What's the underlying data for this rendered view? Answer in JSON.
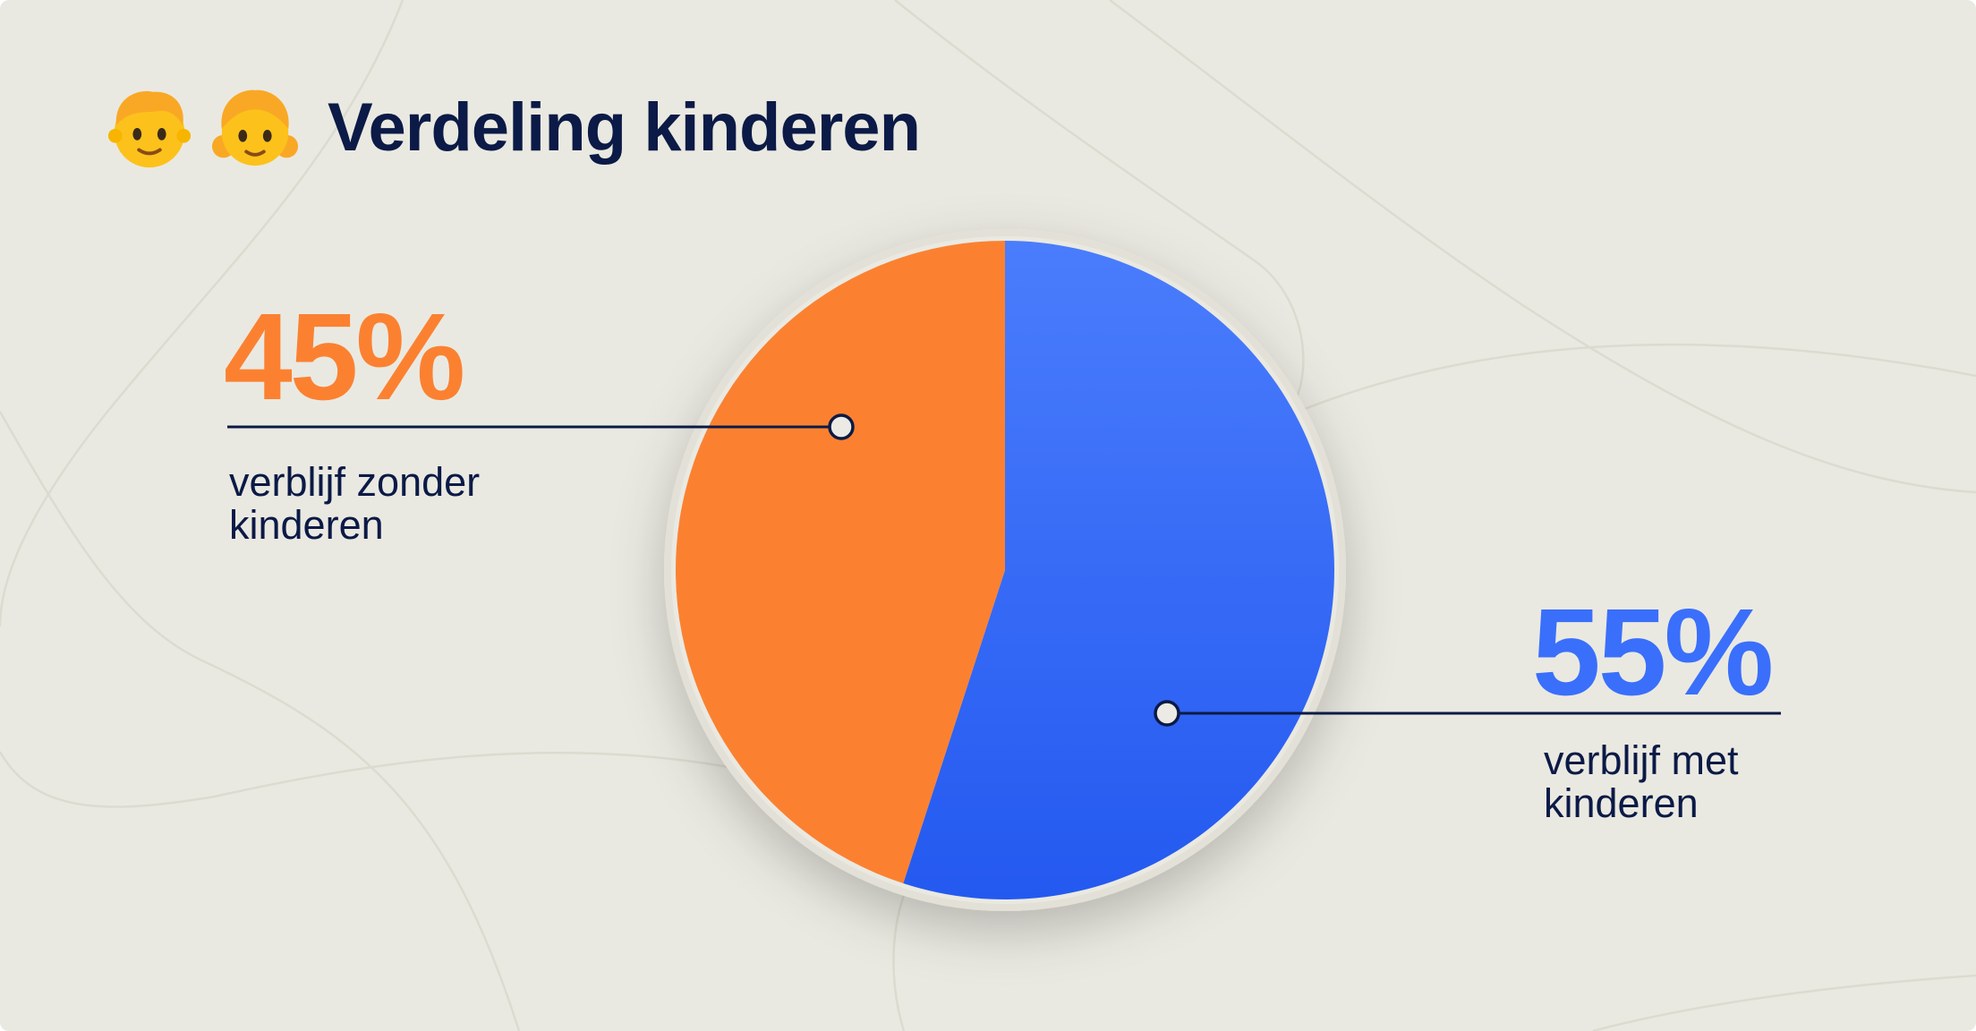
{
  "header": {
    "emojis": [
      "boy-face-icon",
      "girl-face-icon"
    ],
    "title": "Verdeling kinderen"
  },
  "colors": {
    "background": "#eae9e1",
    "text": "#0b1a46",
    "orange": "#fb8131",
    "blue": "#3a6ffb"
  },
  "chart_data": {
    "type": "pie",
    "unit": "%",
    "slices": [
      {
        "label": "verblijf met kinderen",
        "value": 55,
        "display": "55%",
        "color": "#3a6ffb",
        "label_lines": [
          "verblijf met",
          "kinderen"
        ]
      },
      {
        "label": "verblijf zonder kinderen",
        "value": 45,
        "display": "45%",
        "color": "#fb8131",
        "label_lines": [
          "verblijf zonder",
          "kinderen"
        ]
      }
    ],
    "start_angle": "12 o'clock",
    "direction": "clockwise",
    "legend": "none"
  }
}
